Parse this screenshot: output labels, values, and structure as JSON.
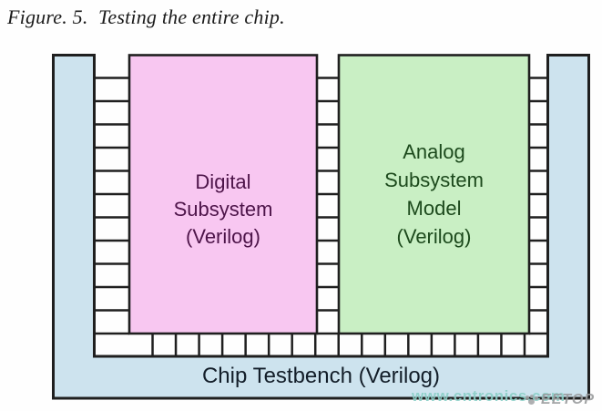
{
  "figure": {
    "caption": "Figure. 5.  Testing the entire chip."
  },
  "diagram": {
    "testbench": {
      "label": "Chip Testbench (Verilog)",
      "fill": "#cde3ee",
      "text_color": "#131e29"
    },
    "digital_box": {
      "lines": [
        "Digital",
        "Subsystem",
        "(Verilog)"
      ],
      "fill": "#f8c7f1",
      "text_color": "#4d1449"
    },
    "analog_box": {
      "lines": [
        "Analog",
        "Subsystem",
        "Model",
        "(Verilog)"
      ],
      "fill": "#c9efc4",
      "text_color": "#1d4a1d"
    },
    "border_color": "#1f1f1f",
    "pins": {
      "side_rows": 12,
      "bottom_cols": 18
    }
  },
  "watermark": {
    "text": "www.cntronics.com",
    "color": "#8cd0c8"
  },
  "logo": {
    "text": "EETOP",
    "color": "#97999b"
  }
}
